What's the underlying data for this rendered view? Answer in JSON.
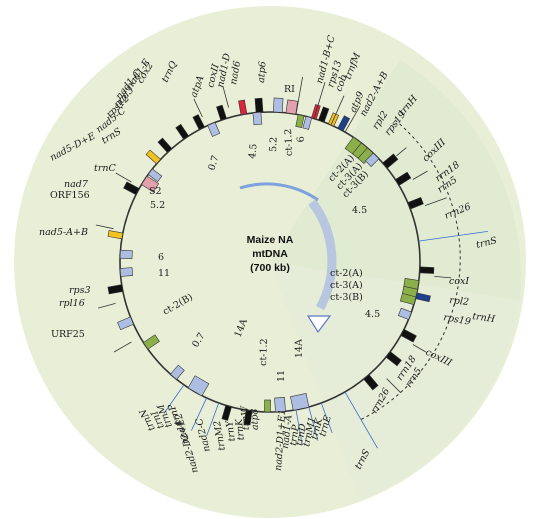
{
  "title": {
    "line1": "Maize NA",
    "line2": "mtDNA",
    "line3": "(700 kb)"
  },
  "colors": {
    "disk": "#e9efd6",
    "gene_black": "#111111",
    "repeat_blue": "#aebde2",
    "chloro_green": "#8bb04a",
    "pink": "#e3a0ad",
    "red": "#d9263b",
    "yellow": "#f2c31e",
    "navy": "#1f3f8c",
    "trn_blue": "#3b6bd6"
  },
  "labels": [
    {
      "id": "trnC",
      "text": "trnC",
      "italic": true
    },
    {
      "id": "nad5-D+E",
      "text": "nad5-D+E",
      "italic": true
    },
    {
      "id": "trnS",
      "text": "trnS",
      "italic": true
    },
    {
      "id": "nad5-C",
      "text": "nad5-C",
      "italic": true
    },
    {
      "id": "rps12",
      "text": "rps12",
      "italic": true
    },
    {
      "id": "nad3",
      "text": "nad3",
      "italic": true
    },
    {
      "id": "nad1-C",
      "text": "nad1-C",
      "italic": true
    },
    {
      "id": "nad1-E",
      "text": "nad1-E",
      "italic": true
    },
    {
      "id": "cox2",
      "text": "cox2",
      "italic": true
    },
    {
      "id": "trnQ",
      "text": "trnQ",
      "italic": true
    },
    {
      "id": "atpA",
      "text": "atpA",
      "italic": true
    },
    {
      "id": "coxII",
      "text": "coxII",
      "italic": true
    },
    {
      "id": "nad1-D",
      "text": "nad1-D",
      "italic": true
    },
    {
      "id": "nad6",
      "text": "nad6",
      "italic": true
    },
    {
      "id": "atp6",
      "text": "atp6",
      "italic": true
    },
    {
      "id": "RI",
      "text": "RI",
      "italic": false
    },
    {
      "id": "nad1-B+C",
      "text": "nad1-B+C",
      "italic": true
    },
    {
      "id": "rps13",
      "text": "rps13",
      "italic": true
    },
    {
      "id": "cob",
      "text": "cob",
      "italic": true
    },
    {
      "id": "trnfM",
      "text": "trnfM",
      "italic": true
    },
    {
      "id": "atp9",
      "text": "atp9",
      "italic": true
    },
    {
      "id": "nad2-A+B",
      "text": "nad2-A+B",
      "italic": true
    },
    {
      "id": "rpl2-in",
      "text": "rpl2",
      "italic": true
    },
    {
      "id": "rps19-in",
      "text": "rps19",
      "italic": true
    },
    {
      "id": "trnH-out",
      "text": "trnH",
      "italic": true
    },
    {
      "id": "coxIII-in",
      "text": "coxIII",
      "italic": true
    },
    {
      "id": "rrn18-in",
      "text": "rrn18",
      "italic": true
    },
    {
      "id": "rrn5-in",
      "text": "rrn5",
      "italic": true
    },
    {
      "id": "rrn26-in",
      "text": "rrn26",
      "italic": true
    },
    {
      "id": "trnS-far",
      "text": "trnS",
      "italic": true
    },
    {
      "id": "coxI",
      "text": "coxI",
      "italic": true
    },
    {
      "id": "rpl2-out",
      "text": "rpl2",
      "italic": true
    },
    {
      "id": "trnH-out2",
      "text": "trnH",
      "italic": true
    },
    {
      "id": "rps19-out",
      "text": "rps19",
      "italic": true
    },
    {
      "id": "coxIII-out",
      "text": "coxIII",
      "italic": true
    },
    {
      "id": "rrn18-out",
      "text": "rrn18",
      "italic": true
    },
    {
      "id": "rrn5-out",
      "text": "rrn5",
      "italic": true
    },
    {
      "id": "rrn26-out",
      "text": "rrn26",
      "italic": true
    },
    {
      "id": "trnS-bottom",
      "text": "trnS",
      "italic": true
    },
    {
      "id": "trnE",
      "text": "trnE",
      "italic": true
    },
    {
      "id": "trnK",
      "text": "trnK",
      "italic": true
    },
    {
      "id": "trnM1",
      "text": "trnM1",
      "italic": true
    },
    {
      "id": "trnD",
      "text": "trnD",
      "italic": true
    },
    {
      "id": "trnP",
      "text": "trnP",
      "italic": true
    },
    {
      "id": "nad1-A",
      "text": "nad1-A",
      "italic": true
    },
    {
      "id": "nad2-D1+E1",
      "text": "nad2-D1+E1",
      "italic": true
    },
    {
      "id": "atp8",
      "text": "atp8",
      "italic": true
    },
    {
      "id": "trnW",
      "text": "trnW",
      "italic": true
    },
    {
      "id": "trnK2",
      "text": "trnK",
      "italic": true
    },
    {
      "id": "trnY",
      "text": "trnY",
      "italic": true
    },
    {
      "id": "trnM2",
      "text": "trnM2",
      "italic": true
    },
    {
      "id": "nad2-C",
      "text": "nad2-C",
      "italic": true
    },
    {
      "id": "nad2-D2+E2",
      "text": "nad2-D2+E2",
      "italic": true
    },
    {
      "id": "nad4",
      "text": "nad4",
      "italic": true
    },
    {
      "id": "trnP2",
      "text": "trnP",
      "italic": true
    },
    {
      "id": "trnM",
      "text": "trnM",
      "italic": true
    },
    {
      "id": "trnI",
      "text": "trnI",
      "italic": true
    },
    {
      "id": "trnN",
      "text": "trnN",
      "italic": true
    },
    {
      "id": "URF25",
      "text": "URF25",
      "italic": false
    },
    {
      "id": "rpl16",
      "text": "rpl16",
      "italic": true
    },
    {
      "id": "rps3",
      "text": "rps3",
      "italic": true
    },
    {
      "id": "nad5-A+B",
      "text": "nad5-A+B",
      "italic": true
    },
    {
      "id": "ORF156",
      "text": "ORF156",
      "italic": false
    },
    {
      "id": "nad7",
      "text": "nad7",
      "italic": true
    }
  ],
  "numbers": [
    {
      "id": "n-0.7-top",
      "text": "0.7"
    },
    {
      "id": "n-4.5-top",
      "text": "4.5"
    },
    {
      "id": "n-5.2-top",
      "text": "5.2"
    },
    {
      "id": "n-ct1.2-top",
      "text": "ct-1.2"
    },
    {
      "id": "n-6-top",
      "text": "6"
    },
    {
      "id": "n-S2",
      "text": "S2"
    },
    {
      "id": "n-5.2-left",
      "text": "5.2"
    },
    {
      "id": "n-6-left",
      "text": "6"
    },
    {
      "id": "n-11-left",
      "text": "11"
    },
    {
      "id": "n-ct2B-left",
      "text": "ct-2(B)"
    },
    {
      "id": "n-0.7-bot",
      "text": "0.7"
    },
    {
      "id": "n-14A-botleft",
      "text": "14A"
    },
    {
      "id": "n-ct1.2-bot",
      "text": "ct-1.2"
    },
    {
      "id": "n-11-bot",
      "text": "11"
    },
    {
      "id": "n-14A-bot",
      "text": "14A"
    },
    {
      "id": "n-ct2A-in",
      "text": "ct-2(A)"
    },
    {
      "id": "n-ct3A-in",
      "text": "ct-3(A)"
    },
    {
      "id": "n-ct3B-in",
      "text": "ct-3(B)"
    },
    {
      "id": "n-4.5-in",
      "text": "4.5"
    },
    {
      "id": "n-ct2A-right",
      "text": "ct-2(A)"
    },
    {
      "id": "n-ct3A-right",
      "text": "ct-3(A)"
    },
    {
      "id": "n-ct3B-right",
      "text": "ct-3(B)"
    },
    {
      "id": "n-4.5-right",
      "text": "4.5"
    }
  ]
}
